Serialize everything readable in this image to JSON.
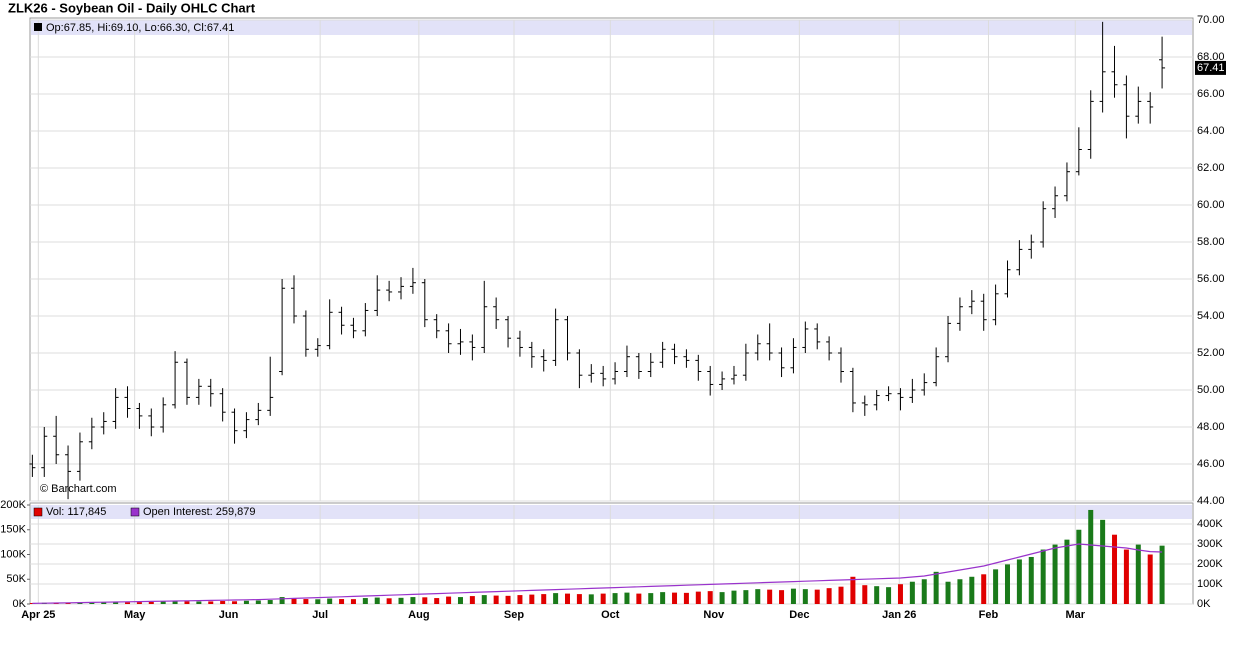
{
  "chart_data": {
    "type": "ohlc",
    "title": "ZLK26 - Soybean Oil - Daily OHLC Chart",
    "legend_text": "Op:67.85, Hi:69.10, Lo:66.30, Cl:67.41",
    "watermark": "© Barchart.com",
    "volume_label": "Vol: 117,845",
    "oi_label": "Open Interest: 259,879",
    "bar_color": "#000000",
    "up_color": "#1a7a1a",
    "down_color": "#e00000",
    "oi_color": "#9933cc",
    "open": [
      46.0,
      45.8,
      47.5,
      46.5,
      45.6,
      47.2,
      48.0,
      48.3,
      49.6,
      49.0,
      48.6,
      48.0,
      49.2,
      51.5,
      49.6,
      50.2,
      49.8,
      48.8,
      47.8,
      48.4,
      48.9,
      51.0,
      55.5,
      54.0,
      52.2,
      52.4,
      54.2,
      53.5,
      53.2,
      54.3,
      55.4,
      55.3,
      55.6,
      55.8,
      53.8,
      53.2,
      52.5,
      52.6,
      52.3,
      54.5,
      53.8,
      52.8,
      52.3,
      51.8,
      51.6,
      53.8,
      52.0,
      50.8,
      50.9,
      50.6,
      51.0,
      51.8,
      51.0,
      51.5,
      52.2,
      51.8,
      51.6,
      51.0,
      50.3,
      50.6,
      50.8,
      52.0,
      52.5,
      52.0,
      51.2,
      52.3,
      53.3,
      52.6,
      52.0,
      51.0,
      49.3,
      49.2,
      49.7,
      49.8,
      49.6,
      50.0,
      50.4,
      51.8,
      53.6,
      54.5,
      54.8,
      53.8,
      55.2,
      56.5,
      57.6,
      58.0,
      59.8,
      60.5,
      61.8,
      63.0,
      65.6,
      67.2,
      66.5,
      64.8,
      65.6,
      67.85
    ],
    "high": [
      46.5,
      48.0,
      48.6,
      47.0,
      47.7,
      48.5,
      48.8,
      50.1,
      50.2,
      49.3,
      49.0,
      49.6,
      52.1,
      51.7,
      50.6,
      50.6,
      50.1,
      49.0,
      48.8,
      49.3,
      51.8,
      56.0,
      56.2,
      54.3,
      52.8,
      54.9,
      54.5,
      53.9,
      54.7,
      56.2,
      55.9,
      56.1,
      56.6,
      56.0,
      54.1,
      53.6,
      53.3,
      53.0,
      55.9,
      55.0,
      54.0,
      53.2,
      52.6,
      52.2,
      54.4,
      54.0,
      52.2,
      51.4,
      51.3,
      51.5,
      52.4,
      52.0,
      52.0,
      52.6,
      52.5,
      52.2,
      51.9,
      51.3,
      51.0,
      51.3,
      52.5,
      53.0,
      53.6,
      52.3,
      52.8,
      53.7,
      53.6,
      52.9,
      52.3,
      51.2,
      49.7,
      50.0,
      50.2,
      50.1,
      50.6,
      50.9,
      52.3,
      54.0,
      55.0,
      55.4,
      55.2,
      55.7,
      57.0,
      58.1,
      58.4,
      60.2,
      61.0,
      62.3,
      64.2,
      66.2,
      69.9,
      68.6,
      67.0,
      66.4,
      66.1,
      69.1
    ],
    "low": [
      45.3,
      45.3,
      46.0,
      44.1,
      45.1,
      46.8,
      47.6,
      47.9,
      48.5,
      47.9,
      47.5,
      47.7,
      49.0,
      49.2,
      49.2,
      49.1,
      48.3,
      47.1,
      47.4,
      48.1,
      48.6,
      50.8,
      53.6,
      51.8,
      51.8,
      52.2,
      53.0,
      52.8,
      52.9,
      54.0,
      54.8,
      54.9,
      55.2,
      53.4,
      52.8,
      52.0,
      51.9,
      51.6,
      52.0,
      53.3,
      52.3,
      51.8,
      51.2,
      51.0,
      51.3,
      51.6,
      50.1,
      50.4,
      50.2,
      50.3,
      50.7,
      50.6,
      50.7,
      51.2,
      51.4,
      51.2,
      50.5,
      49.7,
      50.0,
      50.3,
      50.5,
      51.6,
      51.6,
      50.7,
      50.9,
      52.0,
      52.2,
      51.6,
      50.4,
      48.8,
      48.6,
      48.9,
      49.4,
      48.9,
      49.3,
      49.7,
      50.2,
      51.5,
      53.2,
      54.1,
      53.2,
      53.5,
      55.0,
      56.2,
      57.1,
      57.7,
      59.3,
      60.2,
      61.6,
      62.5,
      65.0,
      65.8,
      63.6,
      64.4,
      64.4,
      66.3
    ],
    "close": [
      45.8,
      47.5,
      46.5,
      45.6,
      47.2,
      48.0,
      48.3,
      49.6,
      49.0,
      48.6,
      48.0,
      49.2,
      51.5,
      49.6,
      50.2,
      49.8,
      48.8,
      47.8,
      48.4,
      48.9,
      49.6,
      55.5,
      54.0,
      52.2,
      52.4,
      54.2,
      53.5,
      53.2,
      54.3,
      55.4,
      55.3,
      55.6,
      55.8,
      53.8,
      53.2,
      52.5,
      52.6,
      52.3,
      54.5,
      53.8,
      52.8,
      52.3,
      51.8,
      51.6,
      53.8,
      52.0,
      50.8,
      50.9,
      50.6,
      51.0,
      51.8,
      51.0,
      51.5,
      52.2,
      51.8,
      51.6,
      51.0,
      50.3,
      50.6,
      50.8,
      52.0,
      52.5,
      52.0,
      51.2,
      52.3,
      53.3,
      52.6,
      52.0,
      51.0,
      49.3,
      49.2,
      49.7,
      49.8,
      49.6,
      50.0,
      50.4,
      51.8,
      53.6,
      54.5,
      54.8,
      53.8,
      55.2,
      56.5,
      57.6,
      58.0,
      59.8,
      60.5,
      61.8,
      63.0,
      65.6,
      67.2,
      66.5,
      64.8,
      65.6,
      65.3,
      67.41
    ],
    "volume": [
      2000,
      2500,
      3000,
      2800,
      3200,
      3500,
      3000,
      4000,
      3500,
      3800,
      4200,
      5000,
      6000,
      5500,
      5000,
      5200,
      6000,
      5500,
      6500,
      7000,
      8000,
      14000,
      12000,
      10000,
      9500,
      11000,
      10000,
      9800,
      12000,
      13000,
      11500,
      12500,
      14000,
      13500,
      12000,
      15000,
      14000,
      16000,
      18000,
      17000,
      16500,
      18000,
      19000,
      20000,
      22000,
      21000,
      20000,
      19500,
      21000,
      22000,
      23000,
      21000,
      22000,
      24000,
      23000,
      22500,
      25000,
      26000,
      24000,
      27000,
      28000,
      30000,
      29000,
      28000,
      31000,
      30000,
      29000,
      32000,
      35000,
      55000,
      38000,
      36000,
      34000,
      40000,
      45000,
      50000,
      65000,
      45000,
      50000,
      55000,
      60000,
      70000,
      80000,
      90000,
      95000,
      110000,
      120000,
      130000,
      150000,
      190000,
      170000,
      140000,
      110000,
      120000,
      100000,
      117845
    ],
    "open_interest": [
      3000,
      4000,
      5000,
      6000,
      7000,
      8000,
      9000,
      10000,
      11000,
      12000,
      13000,
      14000,
      15000,
      16000,
      17000,
      18000,
      19000,
      20000,
      21000,
      22000,
      24000,
      26000,
      28000,
      30000,
      32000,
      34000,
      36000,
      38000,
      40000,
      42000,
      44000,
      46000,
      48000,
      50000,
      52000,
      54000,
      56000,
      58000,
      60000,
      62000,
      64000,
      66000,
      68000,
      70000,
      72000,
      74000,
      76000,
      78000,
      80000,
      82000,
      84000,
      86000,
      88000,
      90000,
      92000,
      94000,
      96000,
      98000,
      100000,
      102000,
      104000,
      106000,
      108000,
      110000,
      112000,
      114000,
      116000,
      118000,
      120000,
      122000,
      124000,
      126000,
      128000,
      130000,
      135000,
      140000,
      150000,
      160000,
      170000,
      180000,
      190000,
      205000,
      220000,
      235000,
      250000,
      265000,
      280000,
      290000,
      300000,
      295000,
      290000,
      285000,
      280000,
      270000,
      262000,
      259879
    ],
    "xlim": [
      -0.2,
      97.6
    ],
    "xticks": [
      {
        "value": 0.5,
        "label": "Apr 25"
      },
      {
        "value": 8.6,
        "label": "May"
      },
      {
        "value": 16.5,
        "label": "Jun"
      },
      {
        "value": 24.2,
        "label": "Jul"
      },
      {
        "value": 32.5,
        "label": "Aug"
      },
      {
        "value": 40.5,
        "label": "Sep"
      },
      {
        "value": 48.6,
        "label": "Oct"
      },
      {
        "value": 57.3,
        "label": "Nov"
      },
      {
        "value": 64.5,
        "label": "Dec"
      },
      {
        "value": 72.9,
        "label": "Jan 26"
      },
      {
        "value": 80.4,
        "label": "Feb"
      },
      {
        "value": 87.7,
        "label": "Mar"
      }
    ],
    "ylim": [
      44,
      70
    ],
    "yticks": [
      {
        "value": 44,
        "label": "44.00"
      },
      {
        "value": 46,
        "label": "46.00"
      },
      {
        "value": 48,
        "label": "48.00"
      },
      {
        "value": 50,
        "label": "50.00"
      },
      {
        "value": 52,
        "label": "52.00"
      },
      {
        "value": 54,
        "label": "54.00"
      },
      {
        "value": 56,
        "label": "56.00"
      },
      {
        "value": 58,
        "label": "58.00"
      },
      {
        "value": 60,
        "label": "60.00"
      },
      {
        "value": 62,
        "label": "62.00"
      },
      {
        "value": 64,
        "label": "64.00"
      },
      {
        "value": 66,
        "label": "66.00"
      },
      {
        "value": 68,
        "label": "68.00"
      },
      {
        "value": 70,
        "label": "70.00"
      }
    ],
    "vlim": [
      0,
      200000
    ],
    "vticks": [
      {
        "value": 0,
        "label": "0K"
      },
      {
        "value": 50000,
        "label": "50K"
      },
      {
        "value": 100000,
        "label": "100K"
      },
      {
        "value": 150000,
        "label": "150K"
      },
      {
        "value": 200000,
        "label": "200K"
      }
    ],
    "y2lim": [
      0,
      400000
    ],
    "y2ticks": [
      {
        "value": 0,
        "label": "0K"
      },
      {
        "value": 100000,
        "label": "100K"
      },
      {
        "value": 200000,
        "label": "200K"
      },
      {
        "value": 300000,
        "label": "300K"
      },
      {
        "value": 400000,
        "label": "400K"
      }
    ],
    "grid": true
  }
}
